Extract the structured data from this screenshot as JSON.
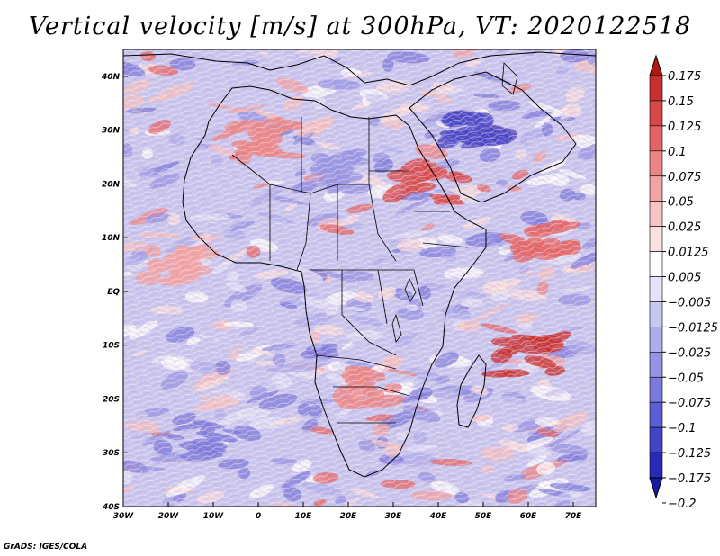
{
  "title": "Vertical velocity [m/s] at 300hPa, VT: 2020122518",
  "credit": "GrADS: IGES/COLA",
  "map": {
    "region": "Africa",
    "lon_range": [
      -30,
      75
    ],
    "lat_range": [
      -40,
      45
    ],
    "x_ticks": [
      {
        "lon": -30,
        "label": "30W"
      },
      {
        "lon": -20,
        "label": "20W"
      },
      {
        "lon": -10,
        "label": "10W"
      },
      {
        "lon": 0,
        "label": "0"
      },
      {
        "lon": 10,
        "label": "10E"
      },
      {
        "lon": 20,
        "label": "20E"
      },
      {
        "lon": 30,
        "label": "30E"
      },
      {
        "lon": 40,
        "label": "40E"
      },
      {
        "lon": 50,
        "label": "50E"
      },
      {
        "lon": 60,
        "label": "60E"
      },
      {
        "lon": 70,
        "label": "70E"
      }
    ],
    "y_ticks": [
      {
        "lat": 40,
        "label": "40N"
      },
      {
        "lat": 30,
        "label": "30N"
      },
      {
        "lat": 20,
        "label": "20N"
      },
      {
        "lat": 10,
        "label": "10N"
      },
      {
        "lat": 0,
        "label": "EQ"
      },
      {
        "lat": -10,
        "label": "10S"
      },
      {
        "lat": -20,
        "label": "20S"
      },
      {
        "lat": -30,
        "label": "30S"
      },
      {
        "lat": -40,
        "label": "40S"
      }
    ],
    "background_color": "#c8c8f2",
    "coast_color": "#000000"
  },
  "colorbar": {
    "entries": [
      {
        "label": "0.175",
        "color": "#b01818"
      },
      {
        "label": "0.15",
        "color": "#c83030"
      },
      {
        "label": "0.125",
        "color": "#d84848"
      },
      {
        "label": "0.1",
        "color": "#e46464"
      },
      {
        "label": "0.075",
        "color": "#ec8484"
      },
      {
        "label": "0.05",
        "color": "#f2a4a4"
      },
      {
        "label": "0.025",
        "color": "#f6c4c4"
      },
      {
        "label": "0.0125",
        "color": "#fae0e0"
      },
      {
        "label": "0.005",
        "color": "#ffffff"
      },
      {
        "label": "−0.005",
        "color": "#e4e4fa"
      },
      {
        "label": "−0.0125",
        "color": "#c8c8f2"
      },
      {
        "label": "−0.025",
        "color": "#aeaeee"
      },
      {
        "label": "−0.05",
        "color": "#9494e6"
      },
      {
        "label": "−0.075",
        "color": "#7a7ade"
      },
      {
        "label": "−0.1",
        "color": "#5e5ed4"
      },
      {
        "label": "−0.125",
        "color": "#4444c8"
      },
      {
        "label": "−0.175",
        "color": "#2a2ab8"
      },
      {
        "label": "−0.2",
        "color": "#1a1aa0"
      }
    ]
  },
  "features": [
    {
      "name": "sahara-ascent-band",
      "lon": 0,
      "lat": 28,
      "color": "#ec8484"
    },
    {
      "name": "north-africa-subsidence",
      "lon": 15,
      "lat": 22,
      "color": "#9494e6"
    },
    {
      "name": "arabia-subsidence",
      "lon": 48,
      "lat": 30,
      "color": "#4444c8"
    },
    {
      "name": "red-sea-ascent",
      "lon": 38,
      "lat": 20,
      "color": "#d84848"
    },
    {
      "name": "indian-ocean-ascent-10n",
      "lon": 62,
      "lat": 10,
      "color": "#e46464"
    },
    {
      "name": "madagascar-east-ascent",
      "lon": 60,
      "lat": -12,
      "color": "#c83030"
    },
    {
      "name": "southern-africa-ascent",
      "lon": 25,
      "lat": -18,
      "color": "#ec8484"
    },
    {
      "name": "atlantic-subsidence",
      "lon": -15,
      "lat": -28,
      "color": "#7a7ade"
    },
    {
      "name": "itcz-atlantic-ascent",
      "lon": -18,
      "lat": 5,
      "color": "#f2a4a4"
    }
  ]
}
